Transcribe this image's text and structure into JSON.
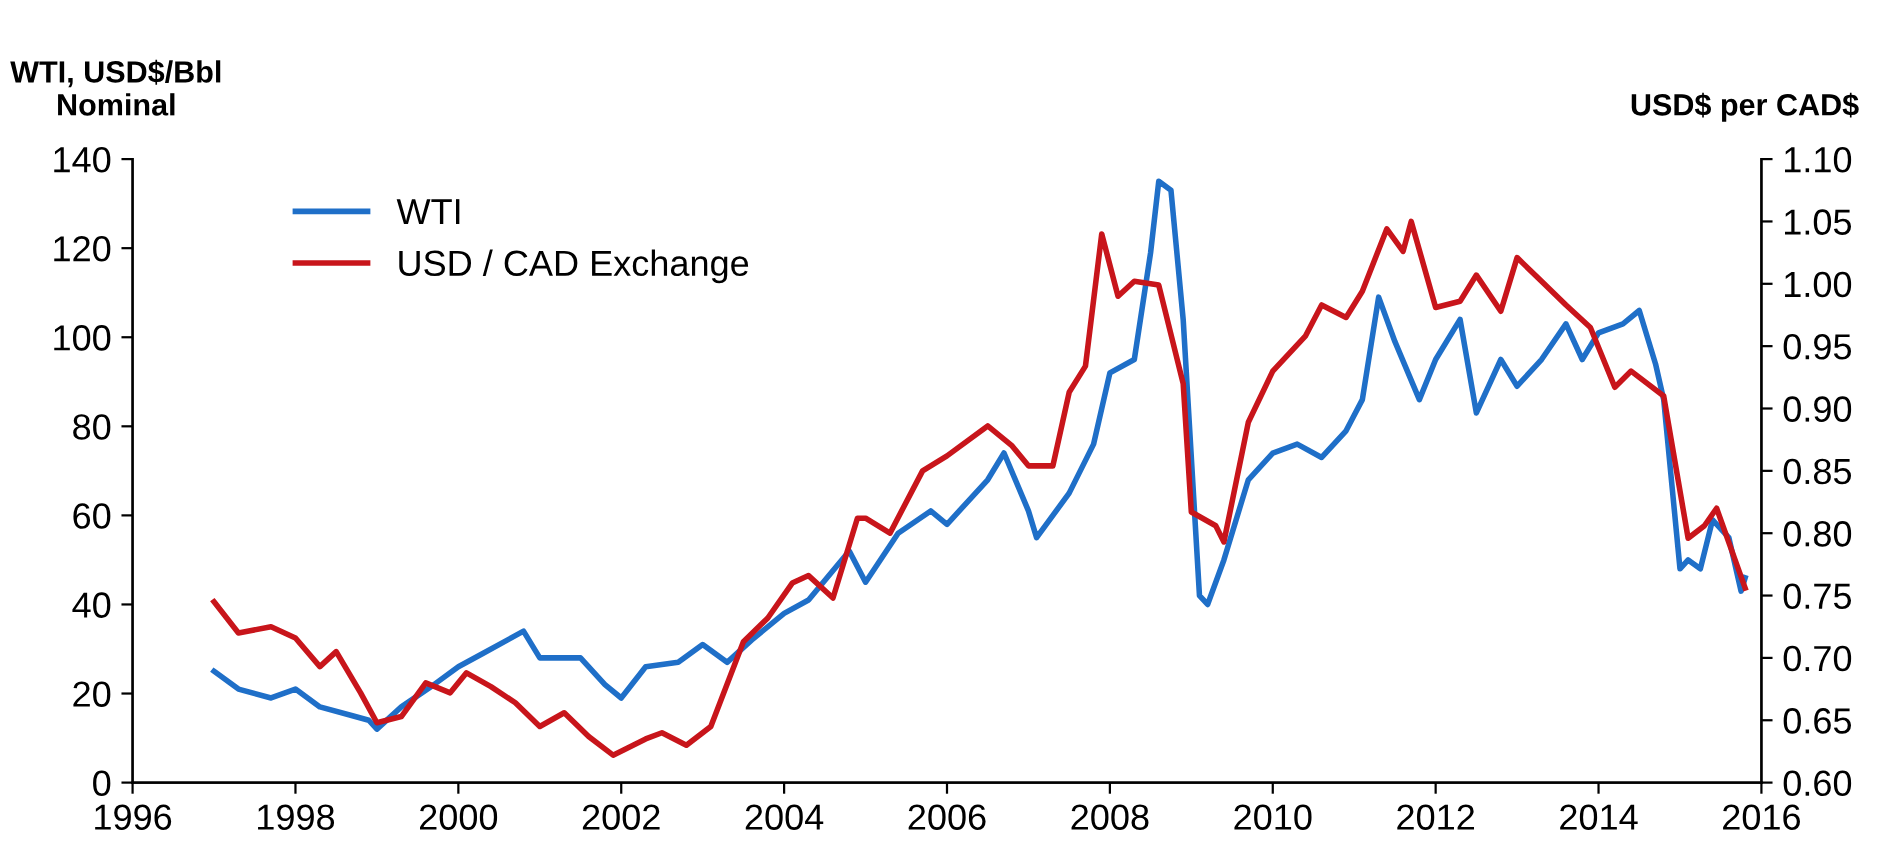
{
  "chart_data": {
    "type": "line",
    "ylabel": "WTI, USD$/Bbl\nNominal",
    "y2label": "USD$ per CAD$",
    "xlim": [
      1996,
      2016
    ],
    "xticks": [
      1996,
      1998,
      2000,
      2002,
      2004,
      2006,
      2008,
      2010,
      2012,
      2014,
      2016
    ],
    "ylim": [
      0,
      140
    ],
    "yticks": [
      0,
      20,
      40,
      60,
      80,
      100,
      120,
      140
    ],
    "y2lim": [
      0.6,
      1.1
    ],
    "y2ticks": [
      {
        "value": 0.6,
        "label": "0.60"
      },
      {
        "value": 0.65,
        "label": "0.65"
      },
      {
        "value": 0.7,
        "label": "0.70"
      },
      {
        "value": 0.75,
        "label": "0.75"
      },
      {
        "value": 0.8,
        "label": "0.80"
      },
      {
        "value": 0.85,
        "label": "0.85"
      },
      {
        "value": 0.9,
        "label": "0.90"
      },
      {
        "value": 0.95,
        "label": "0.95"
      },
      {
        "value": 1.0,
        "label": "1.00"
      },
      {
        "value": 1.05,
        "label": "1.05"
      },
      {
        "value": 1.1,
        "label": "1.10"
      }
    ],
    "legend": "top left",
    "grid": false,
    "series": [
      {
        "name": "WTI",
        "color": "#1f6fc8",
        "x": [
          1997.0,
          1997.3,
          1997.7,
          1998.0,
          1998.3,
          1998.7,
          1998.9,
          1999.0,
          1999.3,
          1999.7,
          2000.0,
          2000.3,
          2000.6,
          2000.8,
          2001.0,
          2001.5,
          2001.8,
          2002.0,
          2002.3,
          2002.7,
          2003.0,
          2003.3,
          2003.6,
          2004.0,
          2004.3,
          2004.8,
          2005.0,
          2005.4,
          2005.8,
          2006.0,
          2006.5,
          2006.7,
          2007.0,
          2007.1,
          2007.5,
          2007.8,
          2008.0,
          2008.3,
          2008.5,
          2008.6,
          2008.75,
          2008.9,
          2009.1,
          2009.2,
          2009.4,
          2009.7,
          2010.0,
          2010.3,
          2010.6,
          2010.9,
          2011.1,
          2011.3,
          2011.5,
          2011.8,
          2012.0,
          2012.3,
          2012.5,
          2012.8,
          2013.0,
          2013.3,
          2013.6,
          2013.8,
          2014.0,
          2014.3,
          2014.5,
          2014.7,
          2014.8,
          2015.0,
          2015.1,
          2015.25,
          2015.4,
          2015.6,
          2015.75,
          2015.8
        ],
        "values": [
          25,
          21,
          19,
          21,
          17,
          15,
          14,
          12,
          17,
          22,
          26,
          29,
          32,
          34,
          28,
          28,
          22,
          19,
          26,
          27,
          31,
          27,
          32,
          38,
          41,
          52,
          45,
          56,
          61,
          58,
          68,
          74,
          61,
          55,
          65,
          76,
          92,
          95,
          119,
          135,
          133,
          104,
          42,
          40,
          50,
          68,
          74,
          76,
          73,
          79,
          86,
          109,
          99,
          86,
          95,
          104,
          83,
          95,
          89,
          95,
          103,
          95,
          101,
          103,
          106,
          94,
          86,
          48,
          50,
          48,
          59,
          55,
          43,
          46
        ]
      },
      {
        "name": "USD / CAD Exchange",
        "color": "#c8151b",
        "axis": "y2",
        "x": [
          1997.0,
          1997.3,
          1997.7,
          1998.0,
          1998.3,
          1998.5,
          1998.8,
          1999.0,
          1999.3,
          1999.6,
          1999.9,
          2000.1,
          2000.4,
          2000.7,
          2001.0,
          2001.3,
          2001.6,
          2001.9,
          2002.3,
          2002.5,
          2002.8,
          2003.1,
          2003.5,
          2003.8,
          2004.1,
          2004.3,
          2004.6,
          2004.9,
          2005.0,
          2005.3,
          2005.7,
          2006.0,
          2006.5,
          2006.8,
          2007.0,
          2007.3,
          2007.5,
          2007.7,
          2007.9,
          2008.1,
          2008.3,
          2008.6,
          2008.9,
          2009.0,
          2009.3,
          2009.4,
          2009.7,
          2010.0,
          2010.4,
          2010.6,
          2010.9,
          2011.1,
          2011.4,
          2011.6,
          2011.7,
          2012.0,
          2012.3,
          2012.5,
          2012.8,
          2013.0,
          2013.3,
          2013.6,
          2013.9,
          2014.2,
          2014.4,
          2014.8,
          2015.1,
          2015.3,
          2015.45,
          2015.8
        ],
        "values": [
          0.745,
          0.72,
          0.725,
          0.716,
          0.693,
          0.705,
          0.672,
          0.648,
          0.653,
          0.68,
          0.672,
          0.688,
          0.677,
          0.664,
          0.645,
          0.656,
          0.637,
          0.622,
          0.635,
          0.64,
          0.63,
          0.645,
          0.713,
          0.732,
          0.76,
          0.766,
          0.748,
          0.812,
          0.812,
          0.8,
          0.85,
          0.862,
          0.886,
          0.87,
          0.854,
          0.854,
          0.913,
          0.934,
          1.04,
          0.99,
          1.002,
          0.999,
          0.92,
          0.817,
          0.806,
          0.793,
          0.889,
          0.93,
          0.958,
          0.983,
          0.973,
          0.994,
          1.044,
          1.026,
          1.05,
          0.981,
          0.986,
          1.007,
          0.978,
          1.021,
          1.002,
          0.983,
          0.965,
          0.917,
          0.93,
          0.91,
          0.796,
          0.806,
          0.82,
          0.756
        ]
      }
    ]
  }
}
